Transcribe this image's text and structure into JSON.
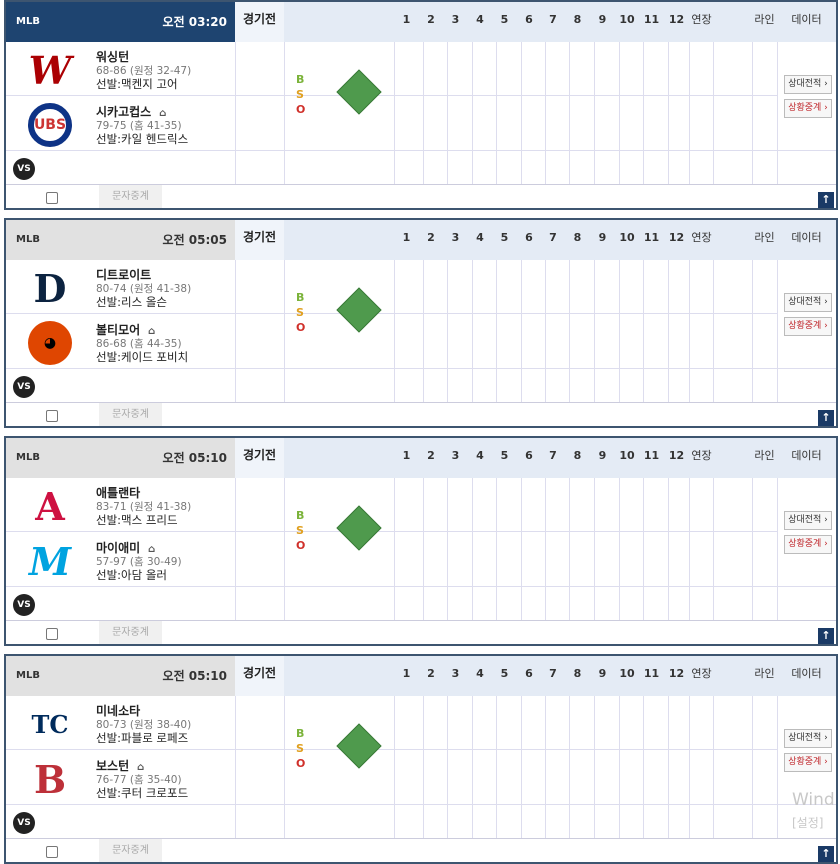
{
  "header_columns": {
    "status": "경기전",
    "innings": [
      "1",
      "2",
      "3",
      "4",
      "5",
      "6",
      "7",
      "8",
      "9",
      "10",
      "11",
      "12"
    ],
    "extra": "연장",
    "line": "라인",
    "data": "데이터"
  },
  "bso": {
    "b": "B",
    "s": "S",
    "o": "O",
    "colors": {
      "b": "#7bb33a",
      "s": "#e0a020",
      "o": "#d0302a"
    }
  },
  "buttons": {
    "h2h": "상대전적 ›",
    "live": "상황중계 ›"
  },
  "vs_label": "VS",
  "text_relay": "문자중계",
  "top_icon": "arrow-up-icon",
  "games": [
    {
      "league": "MLB",
      "time": "오전 03:20",
      "status": "경기전",
      "away": {
        "name": "워싱턴",
        "record": "68-86 (원정 32-47)",
        "starter": "선발:맥켄지 고어",
        "logo": "nationals-logo",
        "mark": "W",
        "color": "#ab0003"
      },
      "home": {
        "name": "시카고컵스",
        "record": "79-75 (홈 41-35)",
        "starter": "선발:카일 헨드릭스",
        "logo": "cubs-logo",
        "mark": "C",
        "color": "#0e3386"
      }
    },
    {
      "league": "MLB",
      "time": "오전 05:05",
      "status": "경기전",
      "away": {
        "name": "디트로이트",
        "record": "80-74 (원정 41-38)",
        "starter": "선발:리스 올슨",
        "logo": "tigers-logo",
        "mark": "D",
        "color": "#0c2340"
      },
      "home": {
        "name": "볼티모어",
        "record": "86-68 (홈 44-35)",
        "starter": "선발:케이드 포비치",
        "logo": "orioles-logo",
        "mark": "O",
        "color": "#df4601"
      }
    },
    {
      "league": "MLB",
      "time": "오전 05:10",
      "status": "경기전",
      "away": {
        "name": "애틀랜타",
        "record": "83-71 (원정 41-38)",
        "starter": "선발:맥스 프리드",
        "logo": "braves-logo",
        "mark": "A",
        "color": "#ce1141"
      },
      "home": {
        "name": "마이애미",
        "record": "57-97 (홈 30-49)",
        "starter": "선발:아담 올러",
        "logo": "marlins-logo",
        "mark": "M",
        "color": "#00a3e0"
      }
    },
    {
      "league": "MLB",
      "time": "오전 05:10",
      "status": "경기전",
      "away": {
        "name": "미네소타",
        "record": "80-73 (원정 38-40)",
        "starter": "선발:파블로 로페즈",
        "logo": "twins-logo",
        "mark": "TC",
        "color": "#002b5c"
      },
      "home": {
        "name": "보스턴",
        "record": "76-77 (홈 35-40)",
        "starter": "선발:쿠터 크로포드",
        "logo": "redsox-logo",
        "mark": "B",
        "color": "#bd3039"
      }
    }
  ],
  "watermark": {
    "line1": "Wind",
    "line2": "[설정]"
  }
}
